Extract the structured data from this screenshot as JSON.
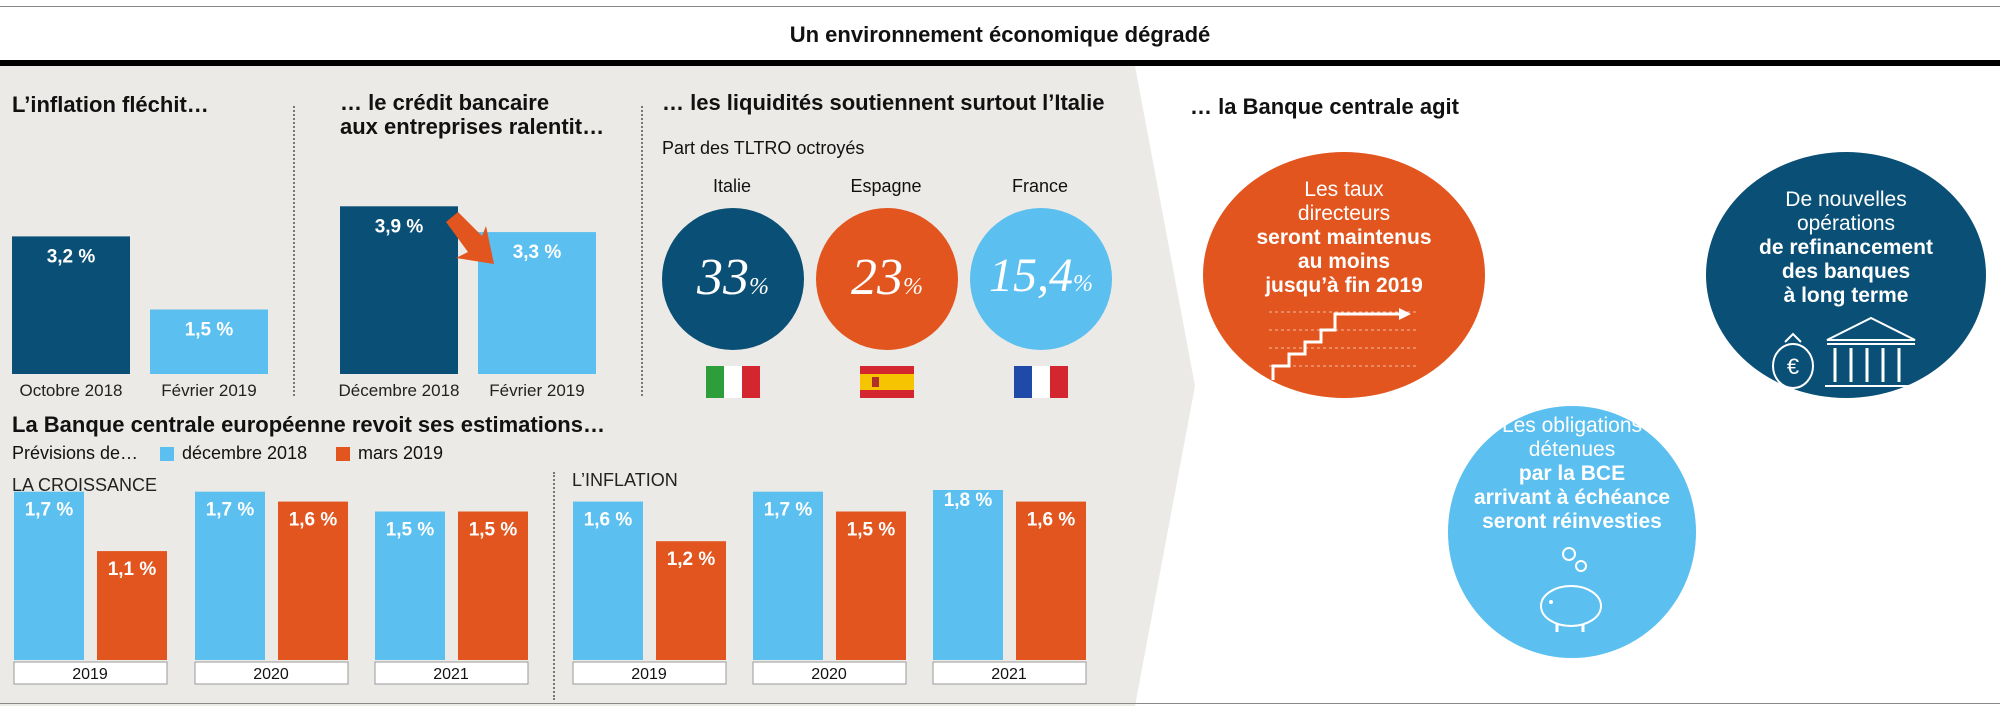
{
  "title": "Un environnement économique dégradé",
  "colors": {
    "dark": "#0a4f75",
    "light": "#5bbfef",
    "orange": "#e2551e",
    "panel": "#ebeae6"
  },
  "inflation_panel": {
    "heading": "L’inflation fléchit…"
  },
  "credit_panel": {
    "heading_line1": "… le crédit bancaire",
    "heading_line2": "aux entreprises ralentit…"
  },
  "liquidity_panel": {
    "heading": "… les liquidités soutiennent surtout l’Italie",
    "subtitle": "Part des TLTRO octroyés",
    "countries": [
      {
        "name": "Italie",
        "value": "33",
        "unit": "%"
      },
      {
        "name": "Espagne",
        "value": "23",
        "unit": "%"
      },
      {
        "name": "France",
        "value": "15,4",
        "unit": "%"
      }
    ]
  },
  "bce_panel": {
    "heading": "… la Banque centrale agit",
    "bubble1": {
      "line1": "Les taux",
      "line2": "directeurs",
      "bold1": "seront maintenus",
      "bold2": "au moins",
      "bold3": "jusqu’à fin 2019"
    },
    "bubble2": {
      "line1": "De nouvelles",
      "line2": "opérations",
      "bold1": "de refinancement",
      "bold2": "des banques",
      "bold3": "à long terme"
    },
    "bubble3": {
      "line1": "Les obligations",
      "line2": "détenues",
      "bold1": "par la BCE",
      "bold2": "arrivant à échéance",
      "bold3": "seront réinvesties"
    }
  },
  "forecast_panel": {
    "heading": "La Banque centrale européenne revoit ses estimations…",
    "legend_prefix": "Prévisions de…",
    "legend_dec": "décembre 2018",
    "legend_mar": "mars 2019",
    "growth_label": "LA CROISSANCE",
    "inflation_label": "L’INFLATION"
  },
  "chart_data": [
    {
      "type": "bar",
      "title": "L’inflation fléchit…",
      "categories": [
        "Octobre 2018",
        "Février 2019"
      ],
      "values": [
        3.2,
        1.5
      ],
      "labels": [
        "3,2 %",
        "1,5 %"
      ]
    },
    {
      "type": "bar",
      "title": "… le crédit bancaire aux entreprises ralentit…",
      "categories": [
        "Décembre 2018",
        "Février 2019"
      ],
      "values": [
        3.9,
        3.3
      ],
      "labels": [
        "3,9 %",
        "3,3 %"
      ]
    },
    {
      "type": "bar",
      "title": "LA CROISSANCE",
      "categories": [
        "2019",
        "2020",
        "2021"
      ],
      "series": [
        {
          "name": "décembre 2018",
          "values": [
            1.7,
            1.7,
            1.5
          ],
          "labels": [
            "1,7 %",
            "1,7 %",
            "1,5 %"
          ]
        },
        {
          "name": "mars 2019",
          "values": [
            1.1,
            1.6,
            1.5
          ],
          "labels": [
            "1,1 %",
            "1,6 %",
            "1,5 %"
          ]
        }
      ]
    },
    {
      "type": "bar",
      "title": "L’INFLATION",
      "categories": [
        "2019",
        "2020",
        "2021"
      ],
      "series": [
        {
          "name": "décembre 2018",
          "values": [
            1.6,
            1.7,
            1.8
          ],
          "labels": [
            "1,6 %",
            "1,7 %",
            "1,8 %"
          ]
        },
        {
          "name": "mars 2019",
          "values": [
            1.2,
            1.5,
            1.6
          ],
          "labels": [
            "1,2 %",
            "1,5 %",
            "1,6 %"
          ]
        }
      ]
    }
  ]
}
